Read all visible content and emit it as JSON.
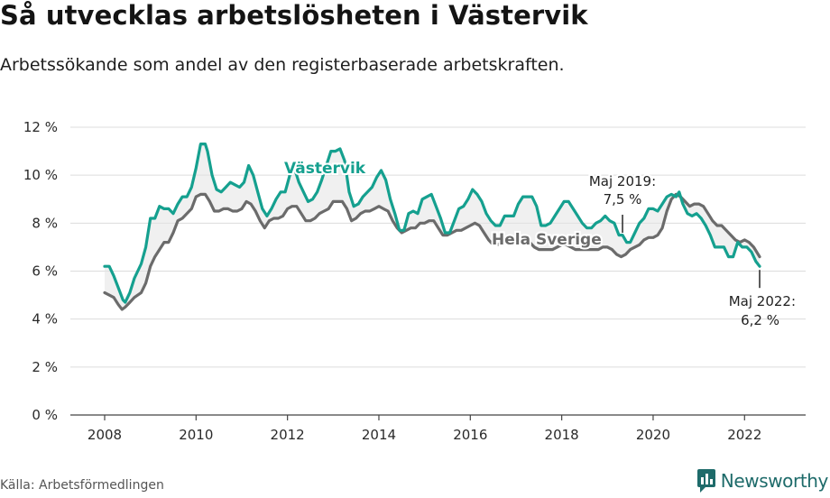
{
  "header": {
    "title": "Så utvecklas arbetslösheten i Västervik",
    "subtitle": "Arbetssökande som andel av den registerbaserade arbetskraften."
  },
  "footer": {
    "source": "Källa: Arbetsförmedlingen",
    "brand": "Newsworthy"
  },
  "colors": {
    "vastervik": "#15a08f",
    "sverige": "#6b6b6b",
    "fill": "#e4e4e4",
    "grid": "#dcdcdc",
    "brand": "#1e6b6a"
  },
  "icons": [
    "newsworthy-logo-icon"
  ],
  "chart_data": {
    "type": "line",
    "title": "Så utvecklas arbetslösheten i Västervik",
    "subtitle": "Arbetssökande som andel av den registerbaserade arbetskraften.",
    "xlabel": "",
    "ylabel": "",
    "xlim": [
      2007.6,
      2023.1
    ],
    "ylim": [
      0,
      12
    ],
    "xticks": [
      2008,
      2010,
      2012,
      2014,
      2016,
      2018,
      2020,
      2022
    ],
    "xtick_labels": [
      "2008",
      "2010",
      "2012",
      "2014",
      "2016",
      "2018",
      "2020",
      "2022"
    ],
    "yticks": [
      0,
      2,
      4,
      6,
      8,
      10,
      12
    ],
    "ytick_labels": [
      "0 %",
      "2 %",
      "4 %",
      "6 %",
      "8 %",
      "10 %",
      "12 %"
    ],
    "grid": true,
    "series": [
      {
        "name": "Västervik",
        "label": "Västervik",
        "points": [
          [
            2008.0,
            6.2
          ],
          [
            2008.1,
            6.2
          ],
          [
            2008.2,
            5.8
          ],
          [
            2008.3,
            5.3
          ],
          [
            2008.4,
            4.8
          ],
          [
            2008.45,
            4.7
          ],
          [
            2008.55,
            5.1
          ],
          [
            2008.65,
            5.7
          ],
          [
            2008.8,
            6.3
          ],
          [
            2008.9,
            7.0
          ],
          [
            2009.0,
            8.2
          ],
          [
            2009.1,
            8.2
          ],
          [
            2009.2,
            8.7
          ],
          [
            2009.3,
            8.6
          ],
          [
            2009.4,
            8.6
          ],
          [
            2009.5,
            8.4
          ],
          [
            2009.6,
            8.8
          ],
          [
            2009.7,
            9.1
          ],
          [
            2009.8,
            9.1
          ],
          [
            2009.9,
            9.5
          ],
          [
            2010.0,
            10.3
          ],
          [
            2010.1,
            11.3
          ],
          [
            2010.2,
            11.3
          ],
          [
            2010.25,
            11.0
          ],
          [
            2010.35,
            10.0
          ],
          [
            2010.45,
            9.4
          ],
          [
            2010.55,
            9.3
          ],
          [
            2010.65,
            9.5
          ],
          [
            2010.75,
            9.7
          ],
          [
            2010.85,
            9.6
          ],
          [
            2010.95,
            9.5
          ],
          [
            2011.05,
            9.7
          ],
          [
            2011.15,
            10.4
          ],
          [
            2011.25,
            10.0
          ],
          [
            2011.35,
            9.3
          ],
          [
            2011.45,
            8.6
          ],
          [
            2011.55,
            8.3
          ],
          [
            2011.65,
            8.6
          ],
          [
            2011.75,
            9.0
          ],
          [
            2011.85,
            9.3
          ],
          [
            2011.95,
            9.3
          ],
          [
            2012.05,
            10.0
          ],
          [
            2012.15,
            10.3
          ],
          [
            2012.25,
            9.7
          ],
          [
            2012.35,
            9.3
          ],
          [
            2012.45,
            8.9
          ],
          [
            2012.55,
            9.0
          ],
          [
            2012.65,
            9.3
          ],
          [
            2012.75,
            9.8
          ],
          [
            2012.85,
            10.4
          ],
          [
            2012.95,
            11.0
          ],
          [
            2013.05,
            11.0
          ],
          [
            2013.15,
            11.1
          ],
          [
            2013.25,
            10.6
          ],
          [
            2013.35,
            9.3
          ],
          [
            2013.45,
            8.7
          ],
          [
            2013.55,
            8.8
          ],
          [
            2013.65,
            9.1
          ],
          [
            2013.75,
            9.3
          ],
          [
            2013.85,
            9.5
          ],
          [
            2013.95,
            9.9
          ],
          [
            2014.05,
            10.2
          ],
          [
            2014.15,
            9.8
          ],
          [
            2014.25,
            9.0
          ],
          [
            2014.35,
            8.4
          ],
          [
            2014.45,
            7.7
          ],
          [
            2014.55,
            7.7
          ],
          [
            2014.65,
            8.4
          ],
          [
            2014.75,
            8.5
          ],
          [
            2014.85,
            8.4
          ],
          [
            2014.95,
            9.0
          ],
          [
            2015.05,
            9.1
          ],
          [
            2015.15,
            9.2
          ],
          [
            2015.25,
            8.7
          ],
          [
            2015.35,
            8.2
          ],
          [
            2015.45,
            7.6
          ],
          [
            2015.55,
            7.6
          ],
          [
            2015.65,
            8.1
          ],
          [
            2015.75,
            8.6
          ],
          [
            2015.85,
            8.7
          ],
          [
            2015.95,
            9.0
          ],
          [
            2016.05,
            9.4
          ],
          [
            2016.15,
            9.2
          ],
          [
            2016.25,
            8.9
          ],
          [
            2016.35,
            8.4
          ],
          [
            2016.45,
            8.1
          ],
          [
            2016.55,
            7.9
          ],
          [
            2016.65,
            7.9
          ],
          [
            2016.75,
            8.3
          ],
          [
            2016.85,
            8.3
          ],
          [
            2016.95,
            8.3
          ],
          [
            2017.05,
            8.8
          ],
          [
            2017.15,
            9.1
          ],
          [
            2017.25,
            9.1
          ],
          [
            2017.35,
            9.1
          ],
          [
            2017.45,
            8.7
          ],
          [
            2017.55,
            7.9
          ],
          [
            2017.65,
            7.9
          ],
          [
            2017.75,
            8.0
          ],
          [
            2017.85,
            8.3
          ],
          [
            2017.95,
            8.6
          ],
          [
            2018.05,
            8.9
          ],
          [
            2018.15,
            8.9
          ],
          [
            2018.25,
            8.6
          ],
          [
            2018.35,
            8.3
          ],
          [
            2018.45,
            8.0
          ],
          [
            2018.55,
            7.8
          ],
          [
            2018.65,
            7.8
          ],
          [
            2018.75,
            8.0
          ],
          [
            2018.85,
            8.1
          ],
          [
            2018.95,
            8.3
          ],
          [
            2019.05,
            8.1
          ],
          [
            2019.15,
            8.0
          ],
          [
            2019.25,
            7.5
          ],
          [
            2019.33,
            7.5
          ],
          [
            2019.42,
            7.2
          ],
          [
            2019.5,
            7.2
          ],
          [
            2019.6,
            7.6
          ],
          [
            2019.7,
            8.0
          ],
          [
            2019.8,
            8.2
          ],
          [
            2019.9,
            8.6
          ],
          [
            2020.0,
            8.6
          ],
          [
            2020.1,
            8.5
          ],
          [
            2020.2,
            8.8
          ],
          [
            2020.3,
            9.1
          ],
          [
            2020.4,
            9.2
          ],
          [
            2020.5,
            9.1
          ],
          [
            2020.57,
            9.3
          ],
          [
            2020.65,
            8.8
          ],
          [
            2020.75,
            8.4
          ],
          [
            2020.85,
            8.3
          ],
          [
            2020.95,
            8.4
          ],
          [
            2021.05,
            8.2
          ],
          [
            2021.15,
            7.9
          ],
          [
            2021.25,
            7.5
          ],
          [
            2021.35,
            7.0
          ],
          [
            2021.45,
            7.0
          ],
          [
            2021.55,
            7.0
          ],
          [
            2021.65,
            6.6
          ],
          [
            2021.75,
            6.6
          ],
          [
            2021.85,
            7.2
          ],
          [
            2021.95,
            7.0
          ],
          [
            2022.05,
            7.0
          ],
          [
            2022.15,
            6.8
          ],
          [
            2022.25,
            6.4
          ],
          [
            2022.33,
            6.2
          ]
        ]
      },
      {
        "name": "Hela Sverige",
        "label": "Hela Sverige",
        "points": [
          [
            2008.0,
            5.1
          ],
          [
            2008.1,
            5.0
          ],
          [
            2008.2,
            4.9
          ],
          [
            2008.3,
            4.6
          ],
          [
            2008.38,
            4.4
          ],
          [
            2008.45,
            4.5
          ],
          [
            2008.55,
            4.7
          ],
          [
            2008.65,
            4.9
          ],
          [
            2008.8,
            5.1
          ],
          [
            2008.9,
            5.5
          ],
          [
            2009.0,
            6.2
          ],
          [
            2009.1,
            6.6
          ],
          [
            2009.2,
            6.9
          ],
          [
            2009.3,
            7.2
          ],
          [
            2009.4,
            7.2
          ],
          [
            2009.5,
            7.6
          ],
          [
            2009.6,
            8.1
          ],
          [
            2009.7,
            8.2
          ],
          [
            2009.8,
            8.4
          ],
          [
            2009.9,
            8.6
          ],
          [
            2010.0,
            9.1
          ],
          [
            2010.1,
            9.2
          ],
          [
            2010.2,
            9.2
          ],
          [
            2010.3,
            8.9
          ],
          [
            2010.4,
            8.5
          ],
          [
            2010.5,
            8.5
          ],
          [
            2010.6,
            8.6
          ],
          [
            2010.7,
            8.6
          ],
          [
            2010.8,
            8.5
          ],
          [
            2010.9,
            8.5
          ],
          [
            2011.0,
            8.6
          ],
          [
            2011.1,
            8.9
          ],
          [
            2011.2,
            8.8
          ],
          [
            2011.3,
            8.5
          ],
          [
            2011.4,
            8.1
          ],
          [
            2011.5,
            7.8
          ],
          [
            2011.6,
            8.1
          ],
          [
            2011.7,
            8.2
          ],
          [
            2011.8,
            8.2
          ],
          [
            2011.9,
            8.3
          ],
          [
            2012.0,
            8.6
          ],
          [
            2012.1,
            8.7
          ],
          [
            2012.2,
            8.7
          ],
          [
            2012.3,
            8.4
          ],
          [
            2012.4,
            8.1
          ],
          [
            2012.5,
            8.1
          ],
          [
            2012.6,
            8.2
          ],
          [
            2012.7,
            8.4
          ],
          [
            2012.8,
            8.5
          ],
          [
            2012.9,
            8.6
          ],
          [
            2013.0,
            8.9
          ],
          [
            2013.1,
            8.9
          ],
          [
            2013.2,
            8.9
          ],
          [
            2013.3,
            8.6
          ],
          [
            2013.4,
            8.1
          ],
          [
            2013.5,
            8.2
          ],
          [
            2013.6,
            8.4
          ],
          [
            2013.7,
            8.5
          ],
          [
            2013.8,
            8.5
          ],
          [
            2013.9,
            8.6
          ],
          [
            2014.0,
            8.7
          ],
          [
            2014.1,
            8.6
          ],
          [
            2014.2,
            8.5
          ],
          [
            2014.3,
            8.1
          ],
          [
            2014.4,
            7.8
          ],
          [
            2014.5,
            7.6
          ],
          [
            2014.6,
            7.7
          ],
          [
            2014.7,
            7.8
          ],
          [
            2014.8,
            7.8
          ],
          [
            2014.9,
            8.0
          ],
          [
            2015.0,
            8.0
          ],
          [
            2015.1,
            8.1
          ],
          [
            2015.2,
            8.1
          ],
          [
            2015.3,
            7.8
          ],
          [
            2015.4,
            7.5
          ],
          [
            2015.5,
            7.5
          ],
          [
            2015.6,
            7.6
          ],
          [
            2015.7,
            7.7
          ],
          [
            2015.8,
            7.7
          ],
          [
            2015.9,
            7.8
          ],
          [
            2016.0,
            7.9
          ],
          [
            2016.1,
            8.0
          ],
          [
            2016.2,
            7.9
          ],
          [
            2016.3,
            7.6
          ],
          [
            2016.4,
            7.3
          ],
          [
            2016.5,
            7.1
          ],
          [
            2016.6,
            7.1
          ],
          [
            2016.7,
            7.2
          ],
          [
            2016.8,
            7.2
          ],
          [
            2016.9,
            7.3
          ],
          [
            2017.0,
            7.4
          ],
          [
            2017.1,
            7.4
          ],
          [
            2017.2,
            7.4
          ],
          [
            2017.3,
            7.2
          ],
          [
            2017.4,
            7.0
          ],
          [
            2017.5,
            6.9
          ],
          [
            2017.6,
            6.9
          ],
          [
            2017.7,
            6.9
          ],
          [
            2017.8,
            6.9
          ],
          [
            2017.9,
            7.0
          ],
          [
            2018.0,
            7.1
          ],
          [
            2018.1,
            7.1
          ],
          [
            2018.2,
            7.0
          ],
          [
            2018.3,
            6.9
          ],
          [
            2018.4,
            6.9
          ],
          [
            2018.5,
            6.9
          ],
          [
            2018.6,
            6.9
          ],
          [
            2018.7,
            6.9
          ],
          [
            2018.8,
            6.9
          ],
          [
            2018.9,
            7.0
          ],
          [
            2019.0,
            7.0
          ],
          [
            2019.1,
            6.9
          ],
          [
            2019.2,
            6.7
          ],
          [
            2019.3,
            6.6
          ],
          [
            2019.4,
            6.7
          ],
          [
            2019.5,
            6.9
          ],
          [
            2019.6,
            7.0
          ],
          [
            2019.7,
            7.1
          ],
          [
            2019.8,
            7.3
          ],
          [
            2019.9,
            7.4
          ],
          [
            2020.0,
            7.4
          ],
          [
            2020.1,
            7.5
          ],
          [
            2020.2,
            7.8
          ],
          [
            2020.3,
            8.5
          ],
          [
            2020.4,
            9.0
          ],
          [
            2020.5,
            9.2
          ],
          [
            2020.6,
            9.1
          ],
          [
            2020.7,
            8.9
          ],
          [
            2020.8,
            8.7
          ],
          [
            2020.9,
            8.8
          ],
          [
            2021.0,
            8.8
          ],
          [
            2021.1,
            8.7
          ],
          [
            2021.2,
            8.4
          ],
          [
            2021.3,
            8.1
          ],
          [
            2021.4,
            7.9
          ],
          [
            2021.5,
            7.9
          ],
          [
            2021.6,
            7.7
          ],
          [
            2021.7,
            7.5
          ],
          [
            2021.8,
            7.3
          ],
          [
            2021.9,
            7.2
          ],
          [
            2022.0,
            7.3
          ],
          [
            2022.1,
            7.2
          ],
          [
            2022.2,
            7.0
          ],
          [
            2022.33,
            6.6
          ]
        ]
      }
    ],
    "annotations": [
      {
        "name": "may-2019",
        "x": 2019.33,
        "y": 7.5,
        "line1": "Maj 2019:",
        "line2": "7,5 %",
        "position": "above"
      },
      {
        "name": "may-2022",
        "x": 2022.33,
        "y": 6.2,
        "line1": "Maj 2022:",
        "line2": "6,2 %",
        "position": "below"
      }
    ]
  }
}
